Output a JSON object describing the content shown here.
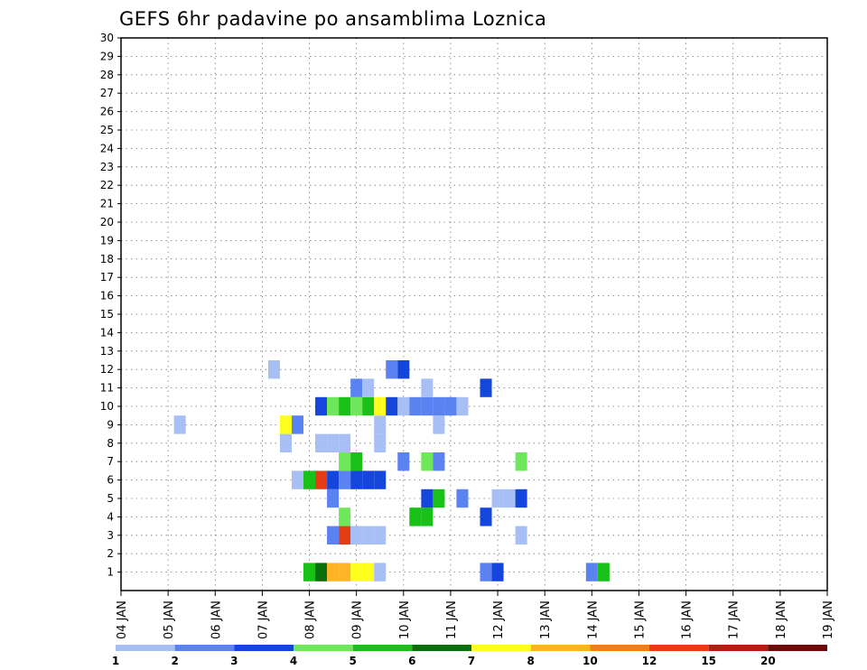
{
  "chart_data": {
    "type": "heatmap",
    "title": "GEFS 6hr padavine po ansamblima Loznica",
    "x_ticks": [
      "04 JAN",
      "05 JAN",
      "06 JAN",
      "07 JAN",
      "08 JAN",
      "09 JAN",
      "10 JAN",
      "11 JAN",
      "12 JAN",
      "13 JAN",
      "14 JAN",
      "15 JAN",
      "16 JAN",
      "17 JAN",
      "18 JAN",
      "19 JAN"
    ],
    "x_range": [
      "04 JAN 00Z",
      "19 JAN 00Z"
    ],
    "time_step_hours": 6,
    "y_ticks": [
      1,
      2,
      3,
      4,
      5,
      6,
      7,
      8,
      9,
      10,
      11,
      12,
      13,
      14,
      15,
      16,
      17,
      18,
      19,
      20,
      21,
      22,
      23,
      24,
      25,
      26,
      27,
      28,
      29,
      30
    ],
    "y_range": [
      0,
      30
    ],
    "grid": true,
    "legend": {
      "position": "bottom",
      "labels": [
        "1",
        "2",
        "3",
        "4",
        "5",
        "6",
        "7",
        "8",
        "10",
        "12",
        "15",
        "20"
      ],
      "colors": [
        "#a8bff5",
        "#5a82f0",
        "#1446dc",
        "#6ee85a",
        "#18c018",
        "#0a6e0a",
        "#ffff1e",
        "#ffb428",
        "#f57d14",
        "#e63c14",
        "#b41e10",
        "#6e0a0a"
      ],
      "bounds": [
        1,
        2,
        3,
        4,
        5,
        6,
        7,
        8,
        10,
        12,
        15,
        20
      ]
    },
    "levels_note": "cell value = color class index 1..12 (lower bound of bin shown in legend)",
    "series": [
      {
        "name": "1",
        "cells": [
          [
            8.0,
            5
          ],
          [
            8.25,
            6
          ],
          [
            8.5,
            8
          ],
          [
            8.75,
            8
          ],
          [
            9.0,
            7
          ],
          [
            9.25,
            7
          ],
          [
            9.5,
            1
          ],
          [
            11.75,
            2
          ],
          [
            12.0,
            3
          ],
          [
            14.0,
            2
          ],
          [
            14.25,
            5
          ]
        ]
      },
      {
        "name": "3",
        "cells": [
          [
            8.5,
            2
          ],
          [
            8.75,
            1
          ],
          [
            8.75,
            10
          ],
          [
            9.0,
            1
          ],
          [
            9.0,
            1
          ],
          [
            9.25,
            1
          ],
          [
            9.5,
            1
          ],
          [
            12.5,
            1
          ]
        ]
      },
      {
        "name": "4",
        "cells": [
          [
            8.75,
            4
          ],
          [
            10.25,
            5
          ],
          [
            10.5,
            5
          ],
          [
            11.75,
            3
          ]
        ]
      },
      {
        "name": "5",
        "cells": [
          [
            8.5,
            2
          ],
          [
            10.5,
            3
          ],
          [
            10.75,
            5
          ],
          [
            11.25,
            2
          ],
          [
            12.0,
            1
          ],
          [
            12.25,
            1
          ],
          [
            12.5,
            3
          ]
        ]
      },
      {
        "name": "6",
        "cells": [
          [
            7.75,
            1
          ],
          [
            8.0,
            5
          ],
          [
            8.25,
            10
          ],
          [
            8.5,
            3
          ],
          [
            8.75,
            2
          ],
          [
            9.0,
            3
          ],
          [
            9.25,
            3
          ],
          [
            9.5,
            3
          ]
        ]
      },
      {
        "name": "7",
        "cells": [
          [
            8.75,
            4
          ],
          [
            9.0,
            5
          ],
          [
            10.0,
            2
          ],
          [
            10.5,
            4
          ],
          [
            10.75,
            2
          ],
          [
            12.5,
            4
          ]
        ]
      },
      {
        "name": "8",
        "cells": [
          [
            7.5,
            1
          ],
          [
            8.25,
            1
          ],
          [
            8.5,
            1
          ],
          [
            8.75,
            1
          ],
          [
            9.5,
            1
          ]
        ]
      },
      {
        "name": "9",
        "cells": [
          [
            5.25,
            1
          ],
          [
            7.5,
            7
          ],
          [
            7.75,
            2
          ],
          [
            9.5,
            1
          ],
          [
            10.75,
            1
          ]
        ]
      },
      {
        "name": "10",
        "cells": [
          [
            8.25,
            3
          ],
          [
            8.5,
            4
          ],
          [
            8.75,
            5
          ],
          [
            9.0,
            4
          ],
          [
            9.25,
            5
          ],
          [
            9.5,
            7
          ],
          [
            9.75,
            3
          ],
          [
            10.0,
            1
          ],
          [
            10.25,
            2
          ],
          [
            10.5,
            2
          ],
          [
            10.75,
            2
          ],
          [
            11.0,
            2
          ],
          [
            11.25,
            1
          ]
        ]
      },
      {
        "name": "11",
        "cells": [
          [
            9.0,
            2
          ],
          [
            9.25,
            1
          ],
          [
            10.5,
            1
          ],
          [
            11.75,
            3
          ]
        ]
      },
      {
        "name": "12",
        "cells": [
          [
            7.25,
            1
          ],
          [
            9.75,
            2
          ],
          [
            10.0,
            3
          ]
        ]
      }
    ]
  }
}
